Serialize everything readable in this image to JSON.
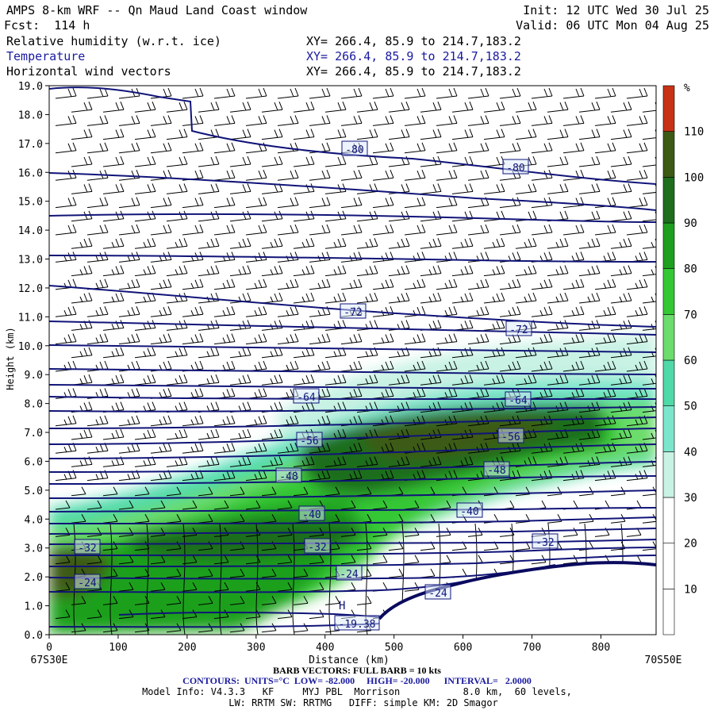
{
  "header": {
    "title": "AMPS 8-km WRF -- Qn Maud Land Coast window",
    "init": "Init: 12 UTC Wed 30 Jul 25",
    "fcst": "Fcst:  114 h",
    "valid": "Valid: 06 UTC Mon 04 Aug 25",
    "fields": [
      {
        "name": "Relative humidity (w.r.t. ice)",
        "xy": "XY= 266.4, 85.9 to 214.7,183.2"
      },
      {
        "name": "Temperature",
        "xy": "XY= 266.4, 85.9 to 214.7,183.2"
      },
      {
        "name": "Horizontal wind vectors",
        "xy": "XY= 266.4, 85.9 to 214.7,183.2"
      }
    ]
  },
  "chart_data": {
    "type": "heatmap",
    "title": "AMPS 8-km WRF -- Qn Maud Land Coast window",
    "xlabel": "Distance (km)",
    "ylabel": "Height (km)",
    "xlim": [
      0,
      880
    ],
    "ylim": [
      0,
      19
    ],
    "x_ticks": [
      0,
      100,
      200,
      300,
      400,
      500,
      600,
      700,
      800
    ],
    "y_ticks": [
      "0.0",
      "1.0",
      "2.0",
      "3.0",
      "4.0",
      "5.0",
      "6.0",
      "7.0",
      "8.0",
      "9.0",
      "10.0",
      "11.0",
      "12.0",
      "13.0",
      "14.0",
      "15.0",
      "16.0",
      "17.0",
      "18.0",
      "19.0"
    ],
    "left_endpoint": "67S30E",
    "right_endpoint": "70S50E",
    "colorbar": {
      "unit": "%",
      "levels": [
        10,
        20,
        30,
        40,
        50,
        60,
        70,
        80,
        90,
        100,
        110
      ],
      "colors": [
        "#ffffff",
        "#ffffff",
        "#ffffff",
        "#c8f2e4",
        "#7be6cc",
        "#4fd9a8",
        "#6cdc6c",
        "#34c834",
        "#1ea01e",
        "#1e6e1e",
        "#3c5a14",
        "#c83214"
      ]
    },
    "temperature_contour_labels": [
      "-80",
      "-80",
      "-72",
      "-72",
      "-64",
      "-64",
      "-56",
      "-56",
      "-48",
      "-48",
      "-40",
      "-40",
      "-32",
      "-32",
      "-32",
      "-24",
      "-24",
      "-24",
      "-19.38"
    ],
    "annotations": [
      "H"
    ],
    "contours": {
      "units": "°C",
      "low": "-82.000",
      "high": "-20.000",
      "interval": "2.0000"
    }
  },
  "footer": {
    "barb": "BARB VECTORS: FULL BARB = 10 kts",
    "contours": "CONTOURS:  UNITS=°C  LOW= -82.000     HIGH= -20.000      INTERVAL=   2.0000",
    "model_info": "Model Info: V4.3.3   KF     MYJ PBL  Morrison           8.0 km,  60 levels,",
    "physics": "LW: RRTM SW: RRTMG   DIFF: simple KM: 2D Smagor"
  }
}
